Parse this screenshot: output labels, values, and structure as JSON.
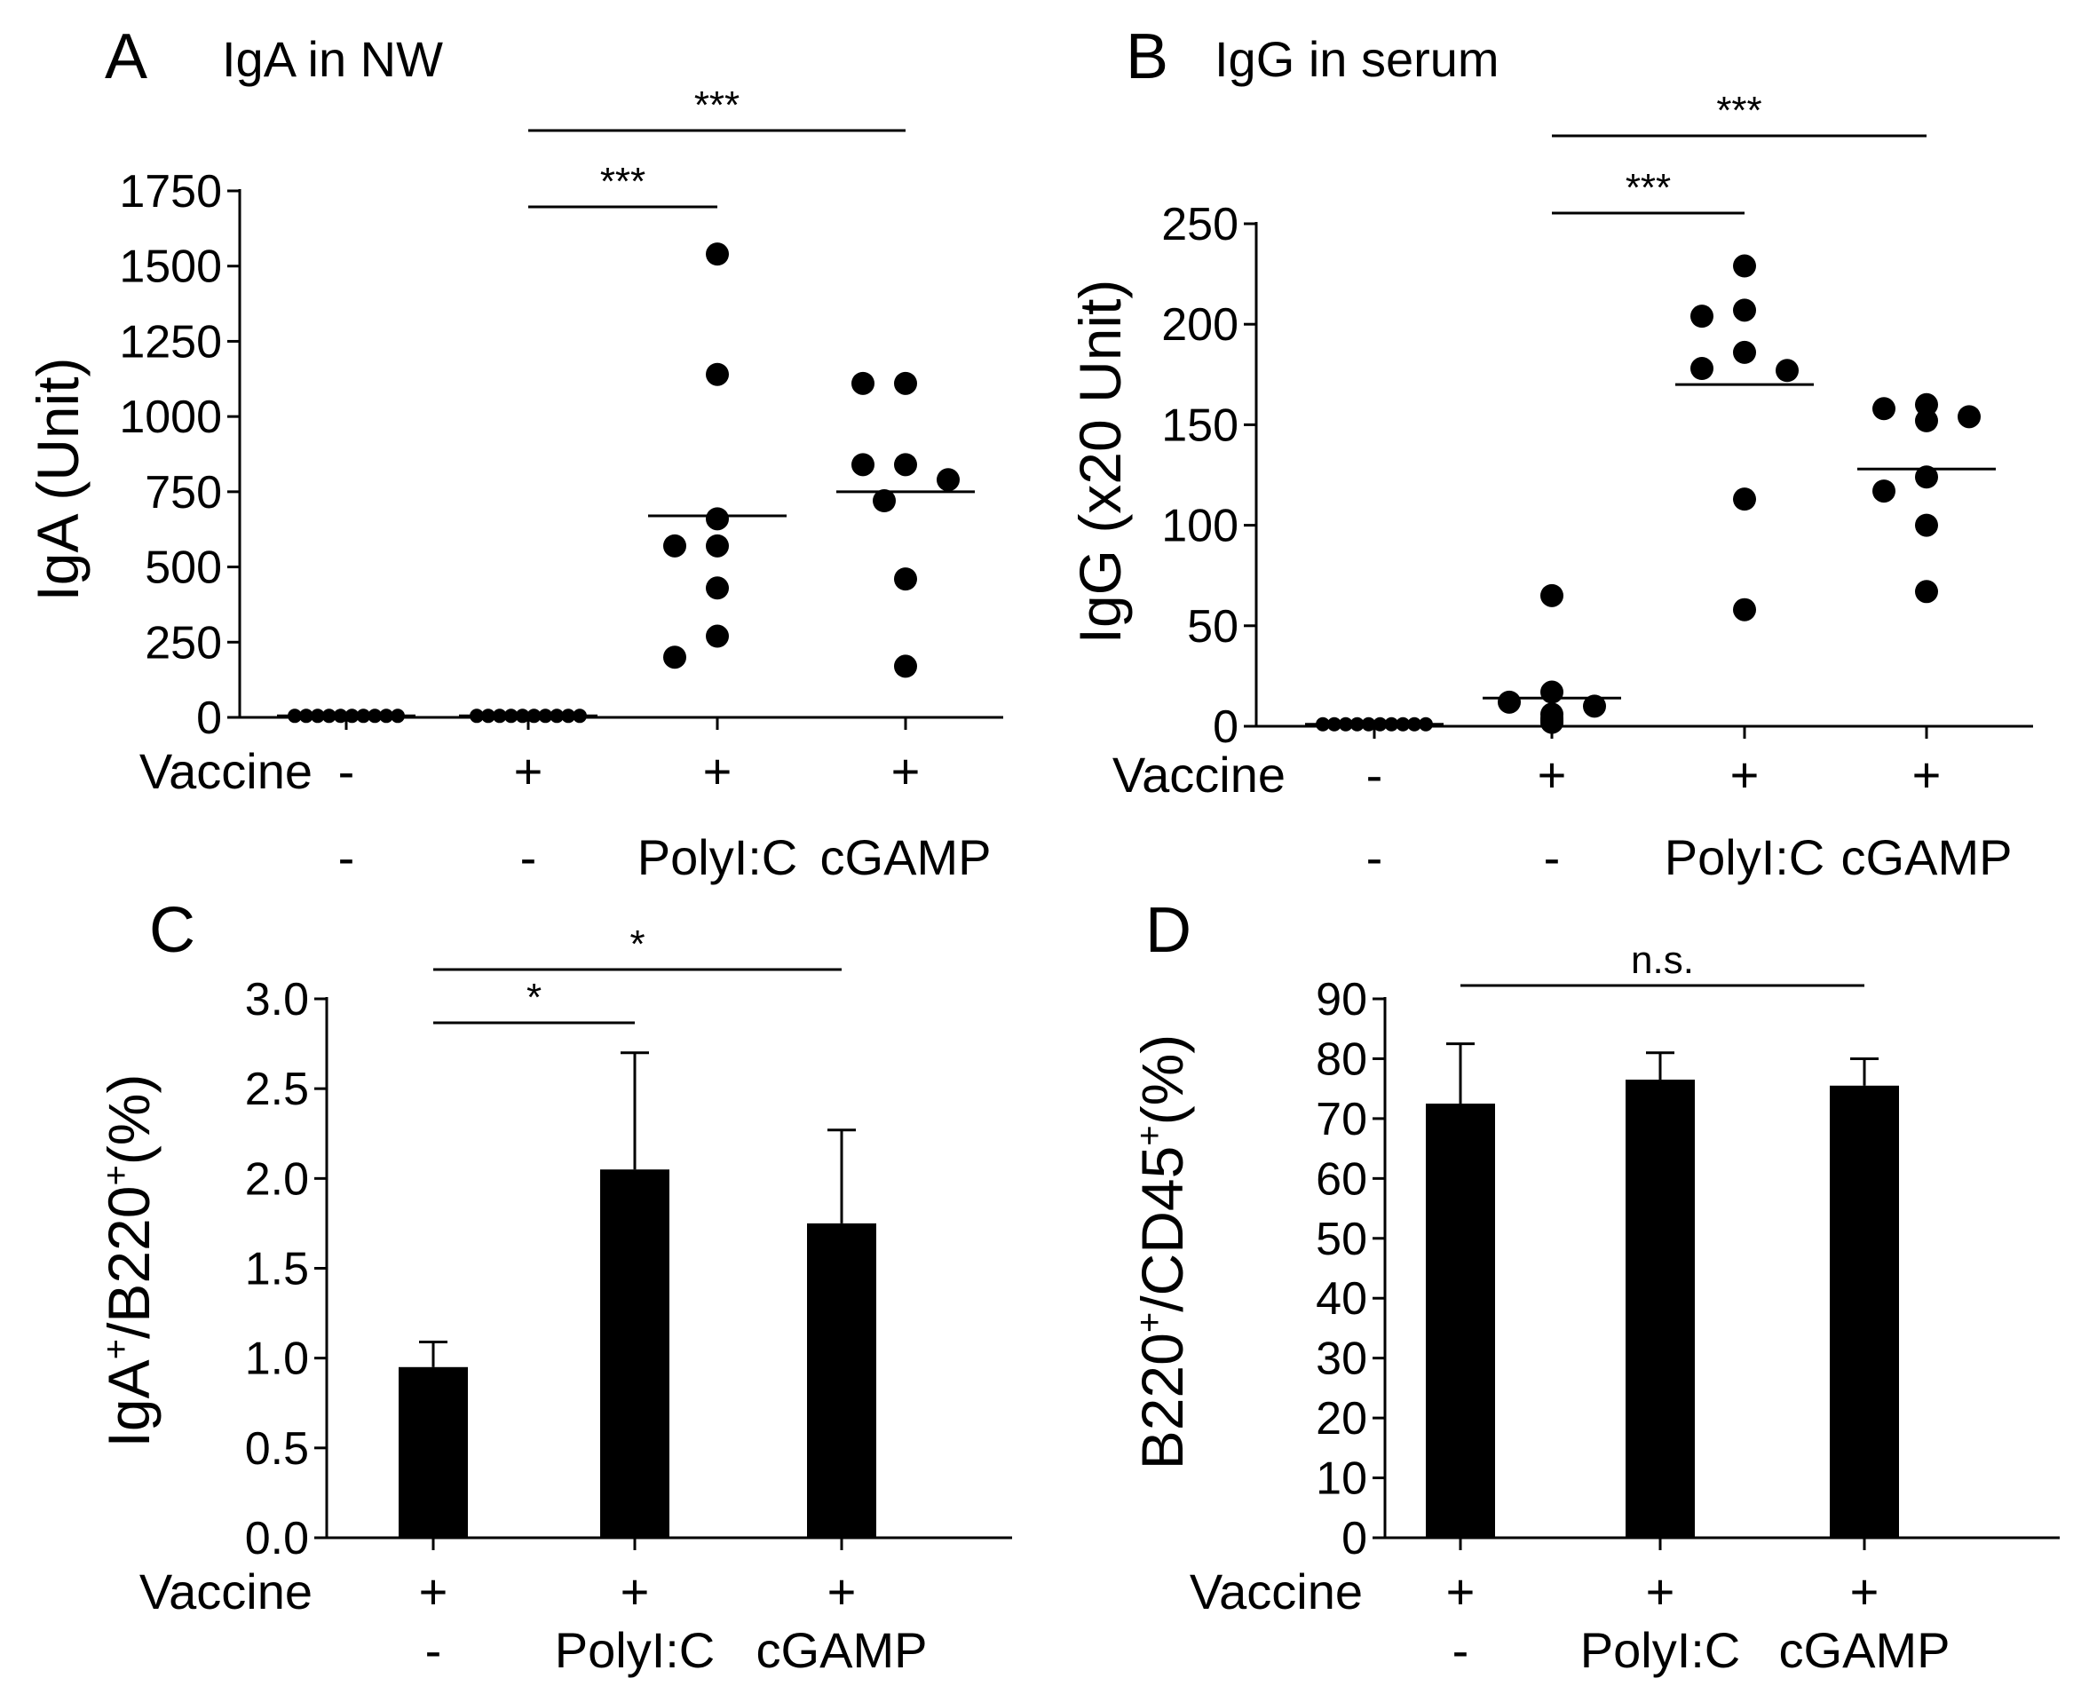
{
  "chart_data": [
    {
      "panel": "A",
      "type": "scatter",
      "title": "IgA in NW",
      "ylabel": "IgA (Unit)",
      "ylim": [
        0,
        1750
      ],
      "yticks": [
        "0",
        "250",
        "500",
        "750",
        "1000",
        "1250",
        "1500",
        "1750"
      ],
      "ytick_values": [
        0,
        250,
        500,
        750,
        1000,
        1250,
        1500,
        1750
      ],
      "row_labels": [
        "Vaccine",
        ""
      ],
      "groups": [
        {
          "vaccine": "-",
          "adjuvant": "-",
          "mean": 5,
          "points": [
            5,
            5,
            5,
            5,
            5,
            5,
            5,
            5,
            5,
            5
          ]
        },
        {
          "vaccine": "+",
          "adjuvant": "-",
          "mean": 5,
          "points": [
            5,
            5,
            5,
            5,
            5,
            5,
            5,
            5,
            5,
            5
          ]
        },
        {
          "vaccine": "+",
          "adjuvant": "PolyI:C",
          "mean": 670,
          "points": [
            1540,
            1140,
            660,
            570,
            570,
            430,
            270,
            200
          ]
        },
        {
          "vaccine": "+",
          "adjuvant": "cGAMP",
          "mean": 750,
          "points": [
            1110,
            1110,
            840,
            840,
            790,
            720,
            460,
            170
          ]
        }
      ],
      "significance": [
        {
          "from": 1,
          "to": 2,
          "label": "***"
        },
        {
          "from": 1,
          "to": 3,
          "label": "***"
        }
      ]
    },
    {
      "panel": "B",
      "type": "scatter",
      "title": "IgG in serum",
      "ylabel": "IgG (x20 Unit)",
      "ylim": [
        0,
        250
      ],
      "yticks": [
        "0",
        "50",
        "100",
        "150",
        "200",
        "250"
      ],
      "ytick_values": [
        0,
        50,
        100,
        150,
        200,
        250
      ],
      "row_labels": [
        "Vaccine",
        ""
      ],
      "groups": [
        {
          "vaccine": "-",
          "adjuvant": "-",
          "mean": 1,
          "points": [
            1,
            1,
            1,
            1,
            1,
            1,
            1,
            1,
            1,
            1
          ]
        },
        {
          "vaccine": "+",
          "adjuvant": "-",
          "mean": 14,
          "points": [
            65,
            17,
            12,
            10,
            6,
            4,
            3,
            2,
            2
          ]
        },
        {
          "vaccine": "+",
          "adjuvant": "PolyI:C",
          "mean": 170,
          "points": [
            229,
            207,
            204,
            186,
            178,
            177,
            113,
            58
          ]
        },
        {
          "vaccine": "+",
          "adjuvant": "cGAMP",
          "mean": 128,
          "points": [
            160,
            158,
            154,
            152,
            124,
            117,
            100,
            67
          ]
        }
      ],
      "significance": [
        {
          "from": 1,
          "to": 2,
          "label": "***"
        },
        {
          "from": 1,
          "to": 3,
          "label": "***"
        }
      ]
    },
    {
      "panel": "C",
      "type": "bar",
      "ylabel": {
        "p1": "IgA",
        "s1": "+",
        "p2": "/B220",
        "s2": "+",
        "p3": "(%)"
      },
      "ylim": [
        0,
        3.0
      ],
      "yticks": [
        "0.0",
        "0.5",
        "1.0",
        "1.5",
        "2.0",
        "2.5",
        "3.0"
      ],
      "ytick_values": [
        0,
        0.5,
        1.0,
        1.5,
        2.0,
        2.5,
        3.0
      ],
      "row_labels": [
        "Vaccine",
        ""
      ],
      "groups": [
        {
          "vaccine": "+",
          "adjuvant": "-",
          "value": 0.95,
          "error": 0.14
        },
        {
          "vaccine": "+",
          "adjuvant": "PolyI:C",
          "value": 2.05,
          "error": 0.65
        },
        {
          "vaccine": "+",
          "adjuvant": "cGAMP",
          "value": 1.75,
          "error": 0.52
        }
      ],
      "significance": [
        {
          "from": 0,
          "to": 1,
          "label": "*"
        },
        {
          "from": 0,
          "to": 2,
          "label": "*"
        }
      ]
    },
    {
      "panel": "D",
      "type": "bar",
      "ylabel": {
        "p1": "B220",
        "s1": "+",
        "p2": "/CD45",
        "s2": "+",
        "p3": "(%)"
      },
      "ylim": [
        0,
        90
      ],
      "yticks": [
        "0",
        "10",
        "20",
        "30",
        "40",
        "50",
        "60",
        "70",
        "80",
        "90"
      ],
      "ytick_values": [
        0,
        10,
        20,
        30,
        40,
        50,
        60,
        70,
        80,
        90
      ],
      "row_labels": [
        "Vaccine",
        ""
      ],
      "groups": [
        {
          "vaccine": "+",
          "adjuvant": "-",
          "value": 72.5,
          "error": 10
        },
        {
          "vaccine": "+",
          "adjuvant": "PolyI:C",
          "value": 76.5,
          "error": 4.5
        },
        {
          "vaccine": "+",
          "adjuvant": "cGAMP",
          "value": 75.5,
          "error": 4.5
        }
      ],
      "significance": [
        {
          "from": 0,
          "to": 2,
          "label": "n.s."
        }
      ]
    }
  ]
}
